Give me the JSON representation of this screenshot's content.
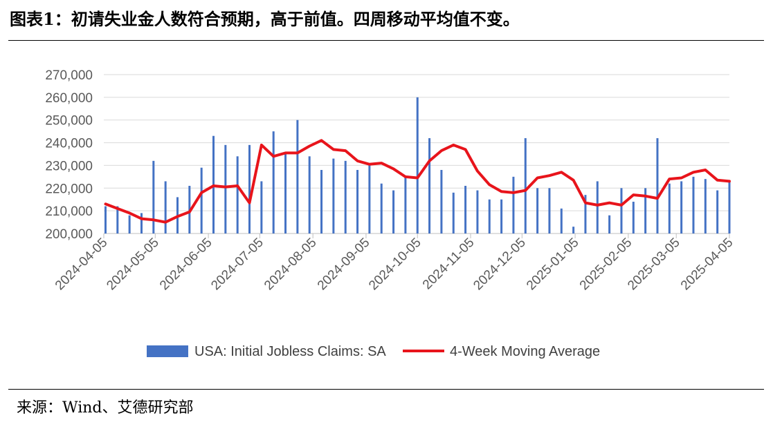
{
  "title": "图表1：初请失业金人数符合预期，高于前值。四周移动平均值不变。",
  "source": "来源：Wind、艾德研究部",
  "chart_data": {
    "type": "bar+line",
    "title": "",
    "xlabel": "",
    "ylabel": "",
    "ylim": [
      200000,
      270000
    ],
    "yticks": [
      "200,000",
      "210,000",
      "220,000",
      "230,000",
      "240,000",
      "250,000",
      "260,000",
      "270,000"
    ],
    "xticks": [
      "2024-04-05",
      "2024-05-05",
      "2024-06-05",
      "2024-07-05",
      "2024-08-05",
      "2024-09-05",
      "2024-10-05",
      "2024-11-05",
      "2024-12-05",
      "2025-01-05",
      "2025-02-05",
      "2025-03-05",
      "2025-04-05"
    ],
    "grid": true,
    "legend_position": "bottom",
    "bar_color": "#4472C4",
    "line_color": "#E8141B",
    "series": [
      {
        "name": "USA: Initial Jobless Claims: SA",
        "kind": "bar",
        "x": [
          "2024-04-06",
          "2024-04-13",
          "2024-04-20",
          "2024-04-27",
          "2024-05-04",
          "2024-05-11",
          "2024-05-18",
          "2024-05-25",
          "2024-06-01",
          "2024-06-08",
          "2024-06-15",
          "2024-06-22",
          "2024-06-29",
          "2024-07-06",
          "2024-07-13",
          "2024-07-20",
          "2024-07-27",
          "2024-08-03",
          "2024-08-10",
          "2024-08-17",
          "2024-08-24",
          "2024-08-31",
          "2024-09-07",
          "2024-09-14",
          "2024-09-21",
          "2024-09-28",
          "2024-10-05",
          "2024-10-12",
          "2024-10-19",
          "2024-10-26",
          "2024-11-02",
          "2024-11-09",
          "2024-11-16",
          "2024-11-23",
          "2024-11-30",
          "2024-12-07",
          "2024-12-14",
          "2024-12-21",
          "2024-12-28",
          "2025-01-04",
          "2025-01-11",
          "2025-01-18",
          "2025-01-25",
          "2025-02-01",
          "2025-02-08",
          "2025-02-15",
          "2025-02-22",
          "2025-03-01",
          "2025-03-08",
          "2025-03-15",
          "2025-03-22",
          "2025-03-29",
          "2025-04-05"
        ],
        "values": [
          212000,
          212000,
          208000,
          209000,
          232000,
          223000,
          216000,
          221000,
          229000,
          243000,
          239000,
          234000,
          239000,
          223000,
          245000,
          235000,
          250000,
          234000,
          228000,
          233000,
          232000,
          228000,
          230000,
          222000,
          219000,
          225000,
          260000,
          242000,
          228000,
          218000,
          221000,
          219000,
          215000,
          215000,
          225000,
          242000,
          220000,
          220000,
          211000,
          203000,
          217000,
          223000,
          208000,
          220000,
          214000,
          220000,
          242000,
          222000,
          223000,
          225000,
          224000,
          219000,
          223000
        ]
      },
      {
        "name": "4-Week Moving Average",
        "kind": "line",
        "x": [
          "2024-04-06",
          "2024-04-13",
          "2024-04-20",
          "2024-04-27",
          "2024-05-04",
          "2024-05-11",
          "2024-05-18",
          "2024-05-25",
          "2024-06-01",
          "2024-06-08",
          "2024-06-15",
          "2024-06-22",
          "2024-06-29",
          "2024-07-06",
          "2024-07-13",
          "2024-07-20",
          "2024-07-27",
          "2024-08-03",
          "2024-08-10",
          "2024-08-17",
          "2024-08-24",
          "2024-08-31",
          "2024-09-07",
          "2024-09-14",
          "2024-09-21",
          "2024-09-28",
          "2024-10-05",
          "2024-10-12",
          "2024-10-19",
          "2024-10-26",
          "2024-11-02",
          "2024-11-09",
          "2024-11-16",
          "2024-11-23",
          "2024-11-30",
          "2024-12-07",
          "2024-12-14",
          "2024-12-21",
          "2024-12-28",
          "2025-01-04",
          "2025-01-11",
          "2025-01-18",
          "2025-01-25",
          "2025-02-01",
          "2025-02-08",
          "2025-02-15",
          "2025-02-22",
          "2025-03-01",
          "2025-03-08",
          "2025-03-15",
          "2025-03-22",
          "2025-03-29",
          "2025-04-05"
        ],
        "values": [
          213000,
          211000,
          209000,
          206500,
          206000,
          205000,
          207500,
          209500,
          218000,
          221000,
          220500,
          221000,
          213500,
          239000,
          234000,
          235500,
          235500,
          238500,
          241000,
          237000,
          236500,
          232000,
          230500,
          231000,
          228500,
          225000,
          224500,
          232000,
          236500,
          239000,
          237000,
          227500,
          221500,
          218500,
          218000,
          219000,
          224500,
          225500,
          227000,
          223500,
          213500,
          212500,
          213500,
          212500,
          217000,
          216500,
          215500,
          224000,
          224500,
          227000,
          228000,
          223500,
          223000
        ]
      }
    ]
  }
}
